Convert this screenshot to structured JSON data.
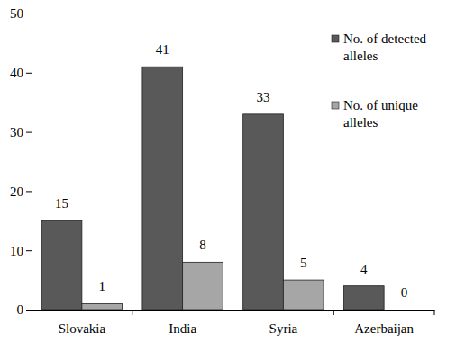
{
  "chart_data": {
    "type": "bar",
    "categories": [
      "Slovakia",
      "India",
      "Syria",
      "Azerbaijan"
    ],
    "series": [
      {
        "name": "No. of detected alleles",
        "color": "#595959",
        "values": [
          15,
          41,
          33,
          4
        ]
      },
      {
        "name": "No. of unique alleles",
        "color": "#a6a6a6",
        "values": [
          1,
          8,
          5,
          0
        ]
      }
    ],
    "ylim": [
      0,
      50
    ],
    "yticks": [
      0,
      10,
      20,
      30,
      40,
      50
    ],
    "grid": false,
    "legend": "top-right",
    "data_labels": true
  }
}
